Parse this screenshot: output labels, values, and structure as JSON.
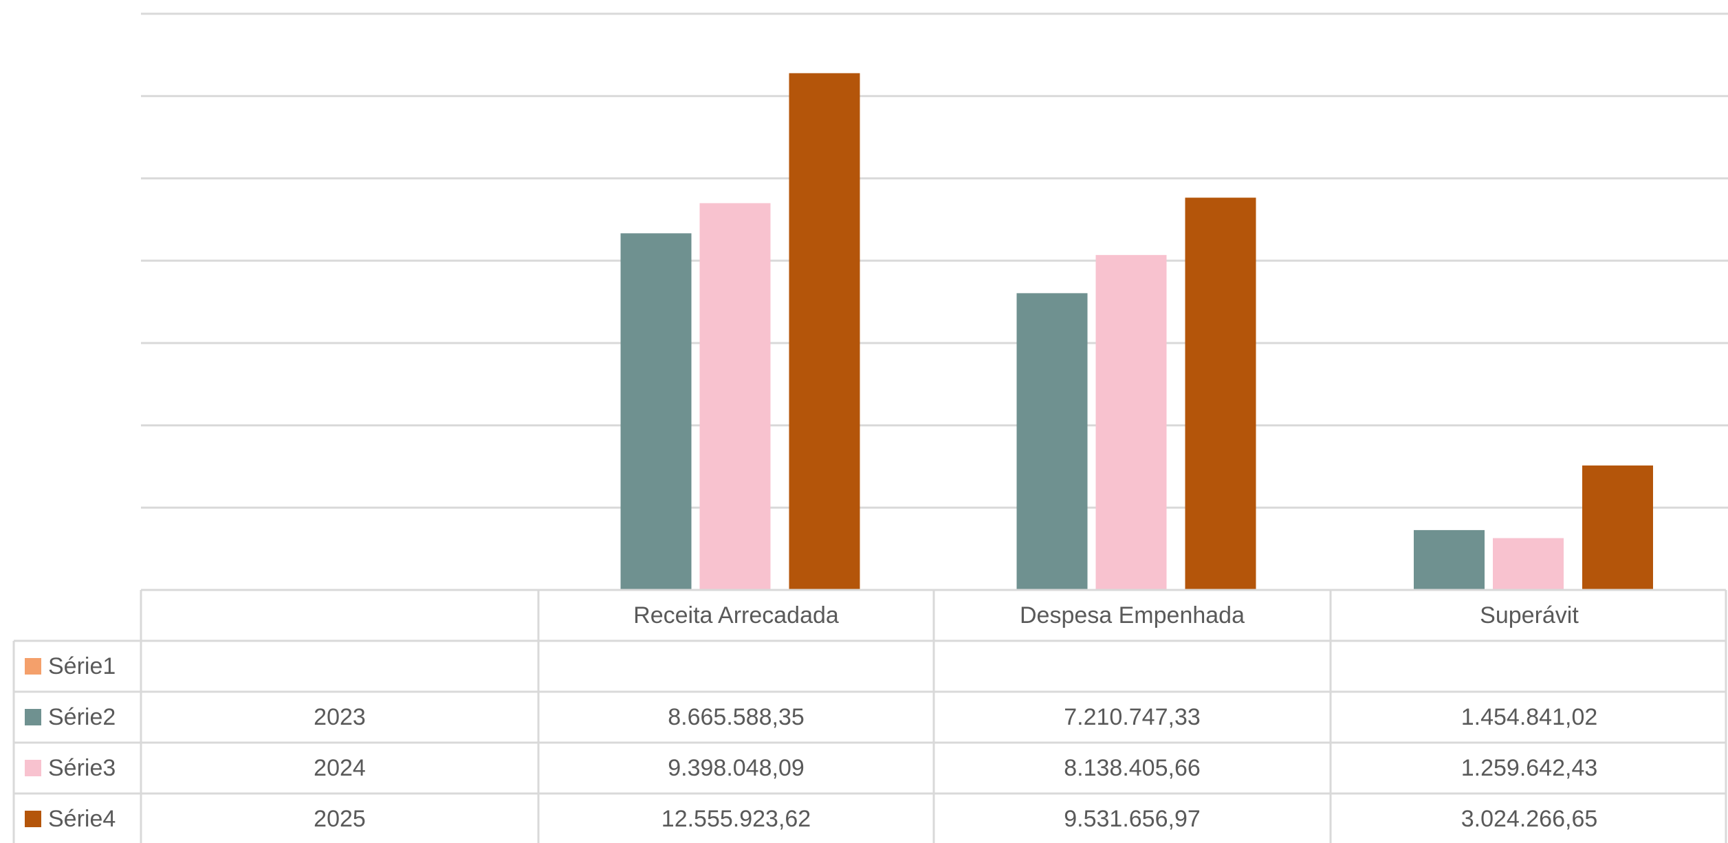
{
  "chart_data": {
    "type": "bar",
    "categories": [
      "",
      "Receita Arrecadada",
      "Despesa Empenhada",
      "Superávit"
    ],
    "series": [
      {
        "name": "Série1",
        "year": "",
        "color": "#f4a06b",
        "values": [
          null,
          null,
          null,
          null
        ],
        "labels": [
          "",
          "",
          "",
          ""
        ]
      },
      {
        "name": "Série2",
        "year": "2023",
        "color": "#6f9190",
        "values": [
          null,
          8665588.35,
          7210747.33,
          1454841.02
        ],
        "labels": [
          "",
          "8.665.588,35",
          "7.210.747,33",
          "1.454.841,02"
        ]
      },
      {
        "name": "Série3",
        "year": "2024",
        "color": "#f8c2cf",
        "values": [
          null,
          9398048.09,
          8138405.66,
          1259642.43
        ],
        "labels": [
          "",
          "9.398.048,09",
          "8.138.405,66",
          "1.259.642,43"
        ]
      },
      {
        "name": "Série4",
        "year": "2025",
        "color": "#b4550a",
        "values": [
          null,
          12555923.62,
          9531656.97,
          3024266.65
        ],
        "labels": [
          "",
          "12.555.923,62",
          "9.531.656,97",
          "3.024.266,65"
        ]
      }
    ],
    "ylim": [
      0,
      14000000
    ],
    "grid": true,
    "legend": "data-table"
  }
}
